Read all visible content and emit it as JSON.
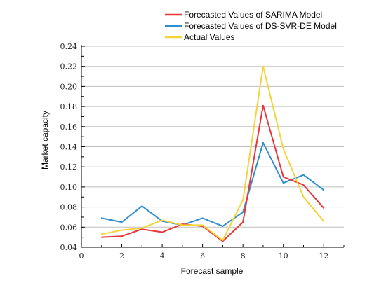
{
  "chart_data": {
    "type": "line",
    "xlabel": "Forecast sample",
    "ylabel": "Market capacity",
    "xlim": [
      0,
      13
    ],
    "ylim": [
      0.04,
      0.24
    ],
    "xticks": [
      0,
      2,
      4,
      6,
      8,
      10,
      12
    ],
    "xtick_labels": [
      "0",
      "2",
      "4",
      "6",
      "8",
      "10",
      "12"
    ],
    "yticks": [
      0.04,
      0.06,
      0.08,
      0.1,
      0.12,
      0.14,
      0.16,
      0.18,
      0.2,
      0.22,
      0.24
    ],
    "ytick_labels": [
      "0.04",
      "0.06",
      "0.08",
      "0.10",
      "0.12",
      "0.14",
      "0.16",
      "0.18",
      "0.20",
      "0.22",
      "0.24"
    ],
    "grid": "horizontal",
    "legend_position": "top",
    "x": [
      1,
      2,
      3,
      4,
      5,
      6,
      7,
      8,
      9,
      10,
      11,
      12
    ],
    "series": [
      {
        "name": "Forecasted Values of SARIMA Model",
        "color": "#e8363a",
        "values": [
          0.05,
          0.051,
          0.058,
          0.055,
          0.063,
          0.061,
          0.046,
          0.065,
          0.181,
          0.11,
          0.102,
          0.079
        ]
      },
      {
        "name": "Forecasted Values of DS-SVR-DE Model",
        "color": "#2e8fcd",
        "values": [
          0.069,
          0.065,
          0.081,
          0.066,
          0.062,
          0.069,
          0.061,
          0.075,
          0.144,
          0.104,
          0.112,
          0.097
        ]
      },
      {
        "name": "Actual Values",
        "color": "#f5d33a",
        "values": [
          0.053,
          0.057,
          0.059,
          0.067,
          0.062,
          0.062,
          0.047,
          0.087,
          0.22,
          0.138,
          0.09,
          0.066
        ]
      }
    ]
  }
}
